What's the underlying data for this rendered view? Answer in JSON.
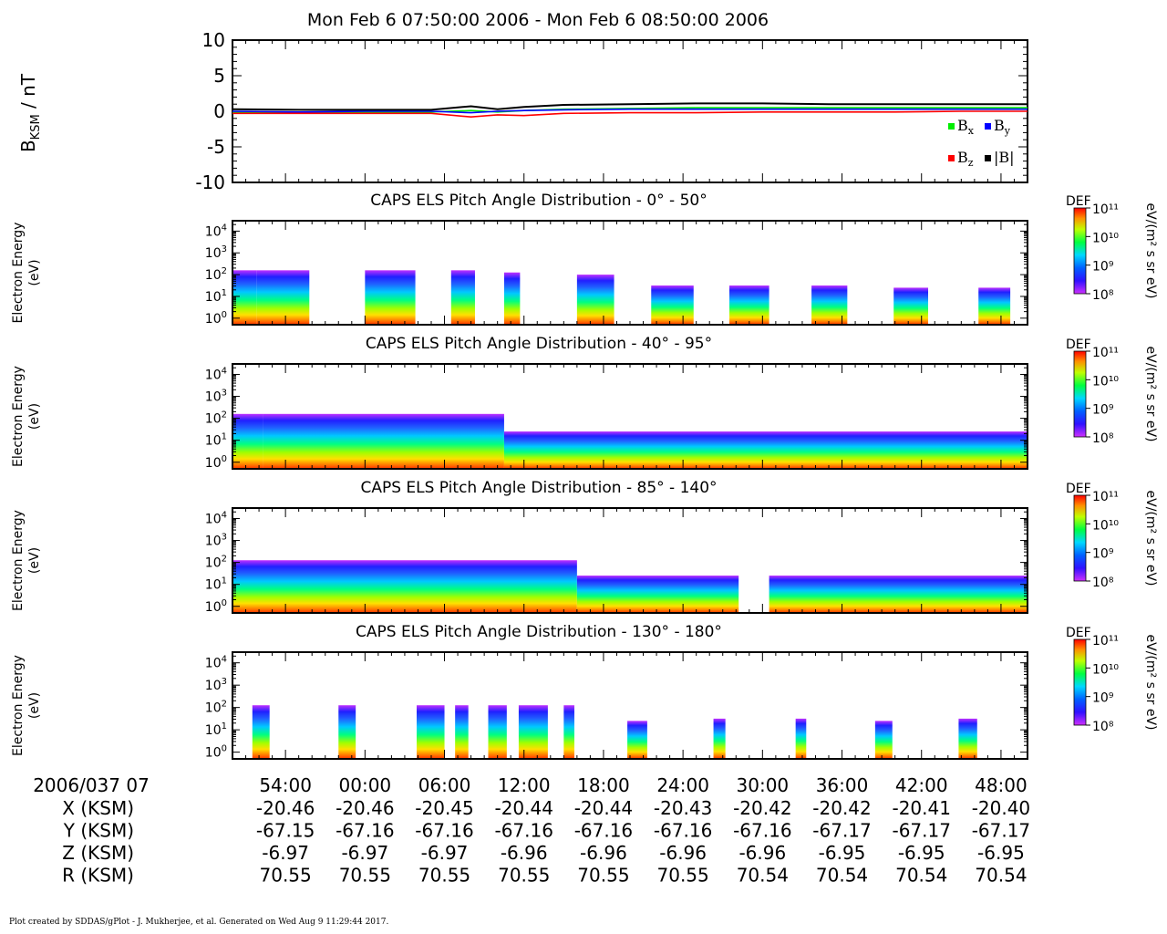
{
  "title": "Mon Feb 6 07:50:00 2006 - Mon Feb 6 08:50:00 2006",
  "footer": "Plot created by SDDAS/gPlot - J. Mukherjee, et al.  Generated on Wed Aug 9 11:29:44 2017.",
  "colors": {
    "bx": "#00ee00",
    "by": "#0000ff",
    "bz": "#ff0000",
    "btot": "#000000"
  },
  "chart_data": [
    {
      "type": "line",
      "ylabel_main": "B",
      "ylabel_sub": "KSM",
      "ylabel_unit": " / nT",
      "ylim": [
        -10,
        10
      ],
      "yticks": [
        "10",
        "5",
        "0",
        "-5",
        "-10"
      ],
      "ytick_values": [
        10,
        5,
        0,
        -5,
        -10
      ],
      "xlim_minutes": [
        0,
        60
      ],
      "legend_placement": "lower-right",
      "legend": [
        {
          "base": "B",
          "sub": "x",
          "color": "#00ee00"
        },
        {
          "base": "B",
          "sub": "y",
          "color": "#0000ff"
        },
        {
          "base": "B",
          "sub": "z",
          "color": "#ff0000"
        },
        {
          "base": "|B|",
          "sub": "",
          "color": "#000000"
        }
      ],
      "series": [
        {
          "name": "Bx",
          "x": [
            0,
            5,
            10,
            15,
            18,
            20,
            22,
            25,
            30,
            35,
            40,
            45,
            50,
            55,
            60
          ],
          "y": [
            -0.1,
            -0.1,
            -0.1,
            -0.1,
            0.1,
            -0.1,
            0.1,
            0.3,
            0.4,
            0.5,
            0.5,
            0.5,
            0.5,
            0.5,
            0.5
          ]
        },
        {
          "name": "By",
          "x": [
            0,
            5,
            10,
            15,
            18,
            20,
            22,
            25,
            30,
            35,
            40,
            45,
            50,
            55,
            60
          ],
          "y": [
            0.0,
            -0.1,
            0.0,
            0.0,
            -0.2,
            0.0,
            0.1,
            0.2,
            0.3,
            0.3,
            0.3,
            0.3,
            0.3,
            0.3,
            0.3
          ]
        },
        {
          "name": "Bz",
          "x": [
            0,
            5,
            10,
            15,
            18,
            20,
            22,
            25,
            30,
            35,
            40,
            45,
            50,
            55,
            60
          ],
          "y": [
            -0.3,
            -0.3,
            -0.3,
            -0.3,
            -0.8,
            -0.5,
            -0.6,
            -0.3,
            -0.2,
            -0.2,
            -0.1,
            -0.1,
            -0.1,
            0.0,
            0.0
          ]
        },
        {
          "name": "|B|",
          "x": [
            0,
            5,
            10,
            15,
            18,
            20,
            22,
            25,
            30,
            35,
            40,
            45,
            50,
            55,
            60
          ],
          "y": [
            0.3,
            0.2,
            0.2,
            0.2,
            0.7,
            0.3,
            0.6,
            0.9,
            1.0,
            1.1,
            1.1,
            1.0,
            1.0,
            1.0,
            1.0
          ]
        }
      ]
    },
    {
      "type": "heatmap",
      "title": "CAPS ELS Pitch Angle Distribution - 0° - 50°",
      "ylabel": [
        "Electron Energy",
        "(eV)"
      ],
      "yscale": "log",
      "ylim": [
        0.5,
        30000
      ],
      "colorbar": {
        "label": "DEF",
        "unit": "eV/(m² s sr eV)",
        "ticks": [
          "10¹¹",
          "10¹⁰",
          "10⁹",
          "10⁸"
        ],
        "range_log": [
          8,
          11
        ]
      },
      "blocks": [
        {
          "x0": 0.0,
          "x1": 1.8,
          "top_log": 2.2
        },
        {
          "x0": 1.8,
          "x1": 5.8,
          "top_log": 2.2
        },
        {
          "x0": 10.0,
          "x1": 13.8,
          "top_log": 2.2
        },
        {
          "x0": 16.5,
          "x1": 18.3,
          "top_log": 2.2
        },
        {
          "x0": 20.5,
          "x1": 21.7,
          "top_log": 2.1
        },
        {
          "x0": 26.0,
          "x1": 28.8,
          "top_log": 2.0
        },
        {
          "x0": 31.6,
          "x1": 34.8,
          "top_log": 1.5
        },
        {
          "x0": 37.5,
          "x1": 40.5,
          "top_log": 1.5
        },
        {
          "x0": 43.7,
          "x1": 46.4,
          "top_log": 1.5
        },
        {
          "x0": 49.9,
          "x1": 52.5,
          "top_log": 1.4
        },
        {
          "x0": 56.3,
          "x1": 58.7,
          "top_log": 1.4
        }
      ]
    },
    {
      "type": "heatmap",
      "title": "CAPS ELS Pitch Angle Distribution - 40° - 95°",
      "ylabel": [
        "Electron Energy",
        "(eV)"
      ],
      "yscale": "log",
      "ylim": [
        0.5,
        30000
      ],
      "colorbar": {
        "label": "DEF",
        "unit": "eV/(m² s sr eV)",
        "ticks": [
          "10¹¹",
          "10¹⁰",
          "10⁹",
          "10⁸"
        ],
        "range_log": [
          8,
          11
        ]
      },
      "blocks": [
        {
          "x0": 0.0,
          "x1": 2.3,
          "top_log": 2.2
        },
        {
          "x0": 2.3,
          "x1": 20.5,
          "top_log": 2.2
        },
        {
          "x0": 20.5,
          "x1": 30.0,
          "top_log": 1.4
        },
        {
          "x0": 30.0,
          "x1": 60.0,
          "top_log": 1.4
        }
      ]
    },
    {
      "type": "heatmap",
      "title": "CAPS ELS Pitch Angle Distribution - 85° - 140°",
      "ylabel": [
        "Electron Energy",
        "(eV)"
      ],
      "yscale": "log",
      "ylim": [
        0.5,
        30000
      ],
      "colorbar": {
        "label": "DEF",
        "unit": "eV/(m² s sr eV)",
        "ticks": [
          "10¹¹",
          "10¹⁰",
          "10⁹",
          "10⁸"
        ],
        "range_log": [
          8,
          11
        ]
      },
      "blocks": [
        {
          "x0": 0.0,
          "x1": 26.0,
          "top_log": 2.1
        },
        {
          "x0": 26.0,
          "x1": 38.2,
          "top_log": 1.4
        },
        {
          "x0": 40.5,
          "x1": 60.0,
          "top_log": 1.4
        }
      ]
    },
    {
      "type": "heatmap",
      "title": "CAPS ELS Pitch Angle Distribution - 130° - 180°",
      "ylabel": [
        "Electron Energy",
        "(eV)"
      ],
      "yscale": "log",
      "ylim": [
        0.5,
        30000
      ],
      "colorbar": {
        "label": "DEF",
        "unit": "eV/(m² s sr eV)",
        "ticks": [
          "10¹¹",
          "10¹⁰",
          "10⁹",
          "10⁸"
        ],
        "range_log": [
          8,
          11
        ]
      },
      "blocks": [
        {
          "x0": 1.5,
          "x1": 2.8,
          "top_log": 2.1
        },
        {
          "x0": 8.0,
          "x1": 9.3,
          "top_log": 2.1
        },
        {
          "x0": 13.9,
          "x1": 16.0,
          "top_log": 2.1
        },
        {
          "x0": 16.8,
          "x1": 17.8,
          "top_log": 2.1
        },
        {
          "x0": 19.3,
          "x1": 20.7,
          "top_log": 2.1
        },
        {
          "x0": 21.6,
          "x1": 23.8,
          "top_log": 2.1
        },
        {
          "x0": 25.0,
          "x1": 25.8,
          "top_log": 2.1
        },
        {
          "x0": 29.8,
          "x1": 31.3,
          "top_log": 1.4
        },
        {
          "x0": 36.3,
          "x1": 37.2,
          "top_log": 1.5
        },
        {
          "x0": 42.5,
          "x1": 43.3,
          "top_log": 1.5
        },
        {
          "x0": 48.5,
          "x1": 49.8,
          "top_log": 1.4
        },
        {
          "x0": 54.8,
          "x1": 56.2,
          "top_log": 1.5
        }
      ]
    }
  ],
  "time_axis": {
    "xlim_minutes": [
      0,
      60
    ],
    "date_label": "2006/037 07",
    "ticks": [
      "54:00",
      "00:00",
      "06:00",
      "12:00",
      "18:00",
      "24:00",
      "30:00",
      "36:00",
      "42:00",
      "48:00"
    ],
    "tick_positions_minutes": [
      4,
      10,
      16,
      22,
      28,
      34,
      40,
      46,
      52,
      58
    ]
  },
  "ephemeris": [
    {
      "label": "X (KSM)",
      "values": [
        "-20.46",
        "-20.46",
        "-20.45",
        "-20.44",
        "-20.44",
        "-20.43",
        "-20.42",
        "-20.42",
        "-20.41",
        "-20.40"
      ]
    },
    {
      "label": "Y (KSM)",
      "values": [
        "-67.15",
        "-67.16",
        "-67.16",
        "-67.16",
        "-67.16",
        "-67.16",
        "-67.16",
        "-67.17",
        "-67.17",
        "-67.17"
      ]
    },
    {
      "label": "Z (KSM)",
      "values": [
        "-6.97",
        "-6.97",
        "-6.97",
        "-6.96",
        "-6.96",
        "-6.96",
        "-6.96",
        "-6.95",
        "-6.95",
        "-6.95"
      ]
    },
    {
      "label": "R (KSM)",
      "values": [
        "70.55",
        "70.55",
        "70.55",
        "70.55",
        "70.55",
        "70.55",
        "70.54",
        "70.54",
        "70.54",
        "70.54"
      ]
    }
  ]
}
